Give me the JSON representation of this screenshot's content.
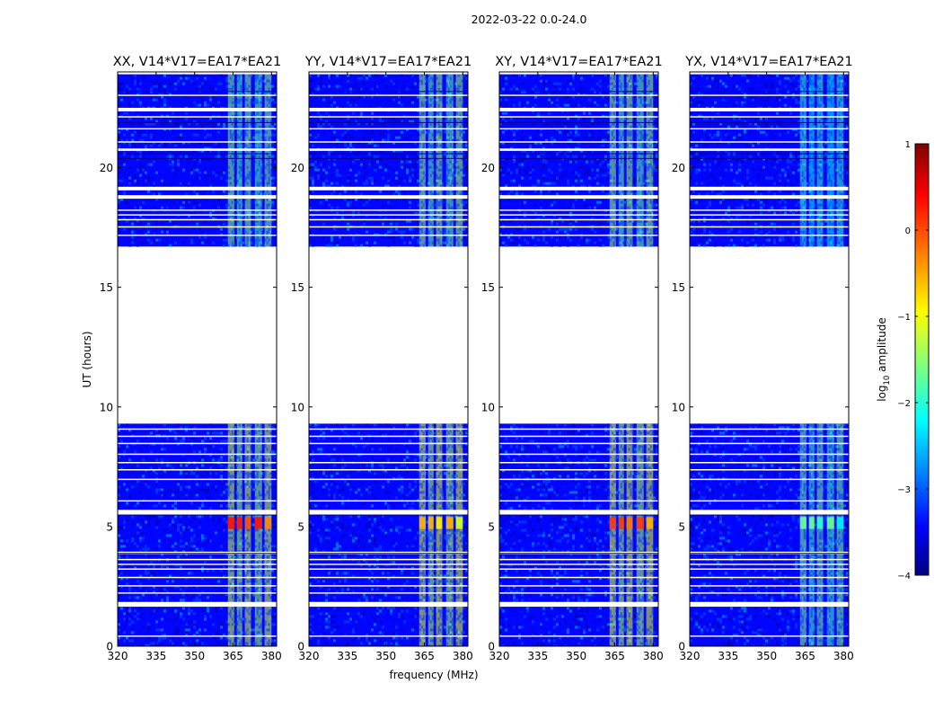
{
  "suptitle": "2022-03-22 0.0-24.0",
  "chart_data": {
    "type": "heatmap",
    "title": "2022-03-22 0.0-24.0",
    "xlabel": "frequency (MHz)",
    "ylabel": "UT (hours)",
    "xlim": [
      320,
      382
    ],
    "ylim": [
      0,
      24
    ],
    "xticks": [
      320,
      335,
      350,
      365,
      380
    ],
    "xtick_labels": [
      "320",
      "335",
      "350",
      "365",
      "380"
    ],
    "yticks": [
      0,
      5,
      10,
      15,
      20
    ],
    "ytick_labels": [
      "0",
      "5",
      "10",
      "15",
      "20"
    ],
    "panels": [
      {
        "title": "XX, V14*V17=EA17*EA21",
        "rfi_level": -1.1,
        "burst_level": 0.3
      },
      {
        "title": "YY, V14*V17=EA17*EA21",
        "rfi_level": -1.0,
        "burst_level": -0.5
      },
      {
        "title": "XY, V14*V17=EA17*EA21",
        "rfi_level": -1.0,
        "burst_level": 0.1
      },
      {
        "title": "YX, V14*V17=EA17*EA21",
        "rfi_level": -1.5,
        "burst_level": -1.6
      }
    ],
    "rfi_band_mhz": [
      363,
      380
    ],
    "rfi_channels_mhz": [
      [
        363,
        365.5
      ],
      [
        366.5,
        368.6
      ],
      [
        369.6,
        372.0
      ],
      [
        373.5,
        376.3
      ],
      [
        377.3,
        380.0
      ]
    ],
    "data_blocks_hours": [
      [
        0,
        9.3
      ],
      [
        16.7,
        23.9
      ]
    ],
    "burst_hours": [
      4.9,
      5.4
    ],
    "flag_gaps_hours": [
      [
        0.4,
        0.45
      ],
      [
        1.65,
        1.85
      ],
      [
        2.2,
        2.25
      ],
      [
        2.5,
        2.55
      ],
      [
        2.85,
        2.9
      ],
      [
        3.2,
        3.25
      ],
      [
        3.4,
        3.45
      ],
      [
        3.6,
        3.65
      ],
      [
        3.85,
        3.95
      ],
      [
        5.5,
        5.7
      ],
      [
        6.05,
        6.1
      ],
      [
        6.95,
        7.0
      ],
      [
        7.35,
        7.4
      ],
      [
        7.65,
        7.7
      ],
      [
        8.0,
        8.05
      ],
      [
        8.45,
        8.5
      ],
      [
        8.75,
        8.8
      ],
      [
        9.05,
        9.1
      ],
      [
        17.15,
        17.2
      ],
      [
        17.5,
        17.55
      ],
      [
        17.8,
        17.85
      ],
      [
        18.0,
        18.05
      ],
      [
        18.2,
        18.25
      ],
      [
        18.7,
        18.85
      ],
      [
        19.05,
        19.2
      ],
      [
        20.7,
        20.8
      ],
      [
        21.05,
        21.1
      ],
      [
        21.6,
        21.65
      ],
      [
        22.1,
        22.15
      ],
      [
        22.35,
        22.5
      ],
      [
        23.0,
        23.05
      ]
    ],
    "colorbar": {
      "label_prefix": "log",
      "label_sub": "10",
      "label_suffix": " amplitude",
      "range": [
        -4,
        1
      ],
      "ticks": [
        1,
        0,
        -1,
        -2,
        -3,
        -4
      ],
      "tick_labels": [
        "1",
        "0",
        "−1",
        "−2",
        "−3",
        "−4"
      ],
      "colormap": "jet"
    }
  }
}
